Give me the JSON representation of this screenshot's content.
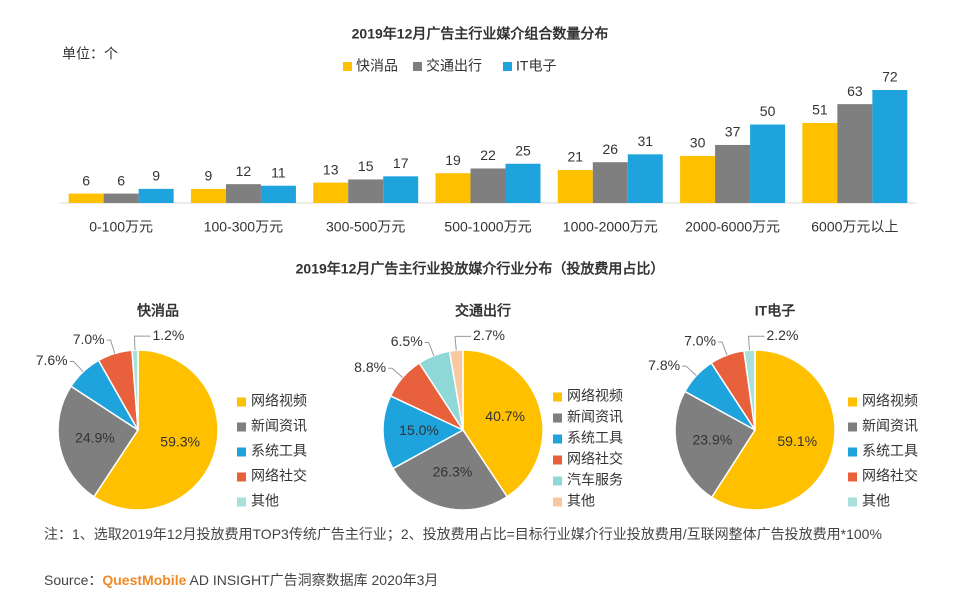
{
  "chart_data": [
    {
      "type": "bar",
      "title": "2019年12月广告主行业媒介组合数量分布",
      "unit": "单位：个",
      "categories": [
        "0-100万元",
        "100-300万元",
        "300-500万元",
        "500-1000万元",
        "1000-2000万元",
        "2000-6000万元",
        "6000万元以上"
      ],
      "series": [
        {
          "name": "快消品",
          "color": "#FFC000",
          "values": [
            6,
            9,
            13,
            19,
            21,
            30,
            51
          ]
        },
        {
          "name": "交通出行",
          "color": "#7F7F7F",
          "values": [
            6,
            12,
            15,
            22,
            26,
            37,
            63
          ]
        },
        {
          "name": "IT电子",
          "color": "#1FA3DC",
          "values": [
            9,
            11,
            17,
            25,
            31,
            50,
            72
          ]
        }
      ]
    },
    {
      "type": "pie",
      "title": "快消品",
      "categories": [
        "网络视频",
        "新闻资讯",
        "系统工具",
        "网络社交",
        "其他"
      ],
      "values": [
        59.3,
        24.9,
        7.6,
        7.0,
        1.2
      ],
      "value_labels": [
        "59.3%",
        "24.9%",
        "7.6%",
        "7.0%",
        "1.2%"
      ],
      "colors": [
        "#FFC000",
        "#7F7F7F",
        "#1FA3DC",
        "#E8603C",
        "#A8E0DC"
      ]
    },
    {
      "type": "pie",
      "title": "交通出行",
      "categories": [
        "网络视频",
        "新闻资讯",
        "系统工具",
        "网络社交",
        "汽车服务",
        "其他"
      ],
      "values": [
        40.7,
        26.3,
        15,
        8.8,
        6.5,
        2.7
      ],
      "value_labels": [
        "40.7%",
        "26.3%",
        "15.0%",
        "8.8%",
        "6.5%",
        "2.7%"
      ],
      "colors": [
        "#FFC000",
        "#7F7F7F",
        "#1FA3DC",
        "#E8603C",
        "#8ED8D8",
        "#F8C8A0"
      ]
    },
    {
      "type": "pie",
      "title": "IT电子",
      "categories": [
        "网络视频",
        "新闻资讯",
        "系统工具",
        "网络社交",
        "其他"
      ],
      "values": [
        59.1,
        23.9,
        7.8,
        7.0,
        2.2
      ],
      "value_labels": [
        "59.1%",
        "23.9%",
        "7.8%",
        "7.0%",
        "2.2%"
      ],
      "colors": [
        "#FFC000",
        "#7F7F7F",
        "#1FA3DC",
        "#E8603C",
        "#A8E0DC"
      ]
    }
  ],
  "pie_section_title": "2019年12月广告主行业投放媒介行业分布（投放费用占比）",
  "note": "注：1、选取2019年12月投放费用TOP3传统广告主行业；2、投放费用占比=目标行业媒介行业投放费用/互联网整体广告投放费用*100%",
  "source": {
    "label": "Source：",
    "brand": "QuestMobile",
    "text": "AD INSIGHT广告洞察数据库 2020年3月"
  }
}
